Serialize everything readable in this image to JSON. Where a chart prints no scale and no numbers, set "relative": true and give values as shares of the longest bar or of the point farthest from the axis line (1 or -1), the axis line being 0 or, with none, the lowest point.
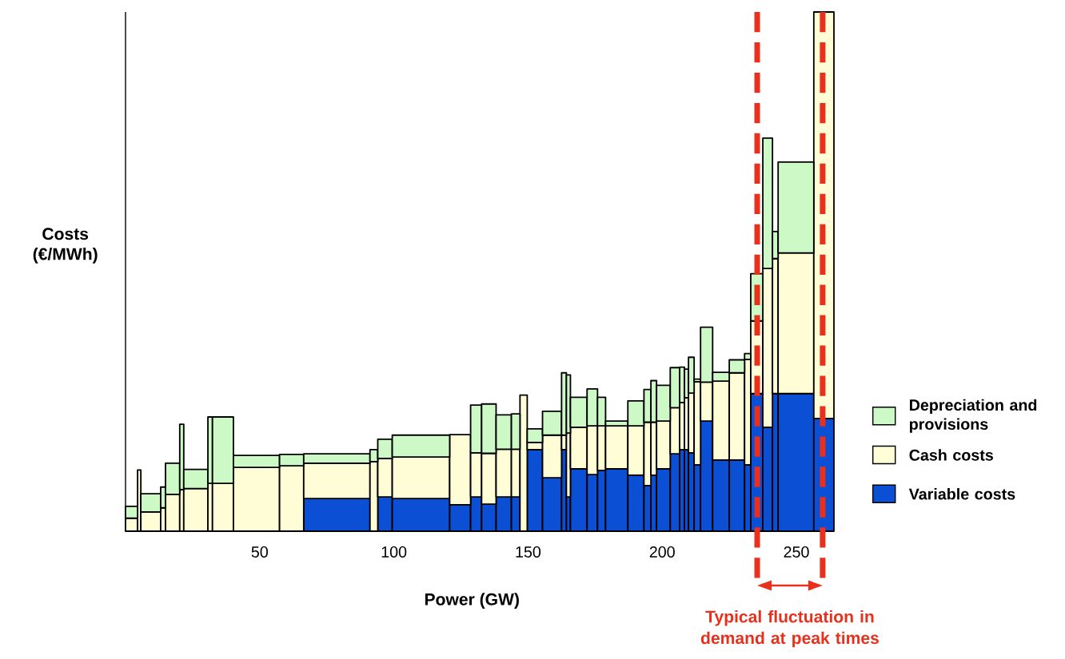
{
  "chart_data": {
    "type": "bar",
    "stacked": true,
    "relative": true,
    "ylabel": "Costs (€/MWh)",
    "xlabel": "Power (GW)",
    "x": [
      2.25,
      5.1,
      9.4,
      14.0,
      17.55,
      20.95,
      26.2,
      31.55,
      36.3,
      48.8,
      61.9,
      78.75,
      92.55,
      96.7,
      110.1,
      124.7,
      130.65,
      135.4,
      140.95,
      145.4,
      148.35,
      152.55,
      158.95,
      163.4,
      165.05,
      168.9,
      173.95,
      177.4,
      183.05,
      190.2,
      194.5,
      196.85,
      200.45,
      204.75,
      207.4,
      209.05,
      210.85,
      213.1,
      216.55,
      221.9,
      227.85,
      231.85,
      235.25,
      239.3,
      242.15,
      249.85,
      260.25
    ],
    "xlim": [
      0,
      264
    ],
    "xticks": [
      50,
      100,
      150,
      200,
      250
    ],
    "series": [
      {
        "name": "Variable costs",
        "color": "#0a4fd4",
        "values": [
          null,
          null,
          null,
          null,
          null,
          null,
          null,
          null,
          null,
          null,
          null,
          0.063,
          null,
          0.066,
          0.063,
          0.051,
          0.066,
          0.052,
          0.066,
          0.066,
          null,
          0.157,
          0.103,
          0.157,
          0.066,
          0.12,
          0.109,
          0.117,
          0.12,
          0.108,
          0.088,
          0.108,
          0.12,
          0.149,
          0.157,
          0.157,
          0.151,
          0.128,
          0.212,
          0.137,
          0.137,
          0.128,
          0.265,
          0.2,
          0.265,
          0.265,
          0.217
        ]
      },
      {
        "name": "Cash costs",
        "color": "#fffdd6",
        "values": [
          0.025,
          0.118,
          0.037,
          0.045,
          0.071,
          0.08,
          0.082,
          0.092,
          0.092,
          0.123,
          0.126,
          0.068,
          0.134,
          0.074,
          0.08,
          0.135,
          0.085,
          0.098,
          0.092,
          0.092,
          0.262,
          0.014,
          0.082,
          0.028,
          0.123,
          0.08,
          0.094,
          0.086,
          0.083,
          0.095,
          0.122,
          0.102,
          0.092,
          0.089,
          0.091,
          0.1,
          0.115,
          0.16,
          0.075,
          0.152,
          0.168,
          0.203,
          0.14,
          0.306,
          0.26,
          0.271,
          0.783
        ]
      },
      {
        "name": "Depreciation and provisions",
        "color": "#ccf9c6",
        "values": [
          0.023,
          null,
          0.035,
          0.04,
          0.06,
          0.126,
          0.037,
          0.128,
          0.128,
          0.023,
          0.022,
          0.018,
          0.023,
          0.037,
          0.042,
          null,
          0.092,
          0.095,
          0.066,
          0.068,
          null,
          0.026,
          0.046,
          0.12,
          0.112,
          0.058,
          0.071,
          0.055,
          0.009,
          0.048,
          0.063,
          0.08,
          0.069,
          0.077,
          0.068,
          0.055,
          0.069,
          0.005,
          0.106,
          0.017,
          0.025,
          0.011,
          0.091,
          0.251,
          0.052,
          0.175,
          null
        ]
      }
    ],
    "ref_lines": [
      {
        "axis": "x",
        "value": 235.4,
        "color": "#e8301c",
        "line_style": "dashed"
      },
      {
        "axis": "x",
        "value": 259.8,
        "color": "#e8301c",
        "line_style": "dashed"
      }
    ],
    "annotations": [
      "Typical fluctuation in demand at peak times"
    ],
    "legend": "right"
  }
}
